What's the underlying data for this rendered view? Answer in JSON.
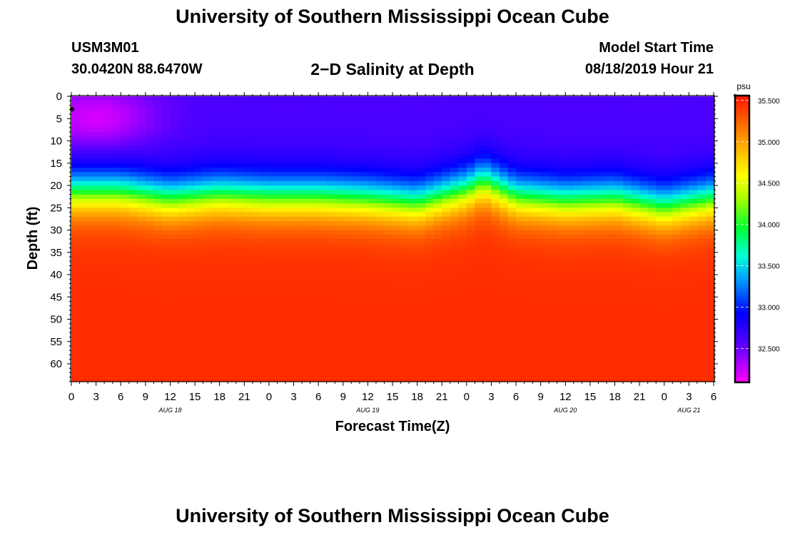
{
  "header": {
    "title": "University of Southern Mississippi Ocean Cube",
    "station_id": "USM3M01",
    "station_coords": "30.0420N 88.6470W",
    "subtitle": "2−D Salinity at Depth",
    "start_label": "Model Start Time",
    "start_value": "08/18/2019 Hour 21"
  },
  "footer": {
    "title": "University of Southern Mississippi Ocean Cube"
  },
  "chart_data": {
    "type": "heatmap",
    "title": "2−D Salinity at Depth",
    "xlabel": "Forecast Time(Z)",
    "ylabel": "Depth (ft)",
    "xlim": [
      0,
      78
    ],
    "ylim": [
      64,
      0
    ],
    "x_ticks": [
      {
        "x": 0,
        "label": "0"
      },
      {
        "x": 3,
        "label": "3"
      },
      {
        "x": 6,
        "label": "6"
      },
      {
        "x": 9,
        "label": "9"
      },
      {
        "x": 12,
        "label": "12"
      },
      {
        "x": 15,
        "label": "15"
      },
      {
        "x": 18,
        "label": "18"
      },
      {
        "x": 21,
        "label": "21"
      },
      {
        "x": 24,
        "label": "0"
      },
      {
        "x": 27,
        "label": "3"
      },
      {
        "x": 30,
        "label": "6"
      },
      {
        "x": 33,
        "label": "9"
      },
      {
        "x": 36,
        "label": "12"
      },
      {
        "x": 39,
        "label": "15"
      },
      {
        "x": 42,
        "label": "18"
      },
      {
        "x": 45,
        "label": "21"
      },
      {
        "x": 48,
        "label": "0"
      },
      {
        "x": 51,
        "label": "3"
      },
      {
        "x": 54,
        "label": "6"
      },
      {
        "x": 57,
        "label": "9"
      },
      {
        "x": 60,
        "label": "12"
      },
      {
        "x": 63,
        "label": "15"
      },
      {
        "x": 66,
        "label": "18"
      },
      {
        "x": 69,
        "label": "21"
      },
      {
        "x": 72,
        "label": "0"
      },
      {
        "x": 75,
        "label": "3"
      },
      {
        "x": 78,
        "label": "6"
      }
    ],
    "date_labels": [
      {
        "x": 12,
        "label": "AUG 18"
      },
      {
        "x": 36,
        "label": "AUG 19"
      },
      {
        "x": 60,
        "label": "AUG 20"
      },
      {
        "x": 75,
        "label": "AUG 21"
      }
    ],
    "y_ticks": [
      0,
      5,
      10,
      15,
      20,
      25,
      30,
      35,
      40,
      45,
      50,
      55,
      60
    ],
    "colorbar": {
      "unit": "psu",
      "min": 32.1,
      "max": 35.55,
      "ticks": [
        {
          "value": 32.5,
          "label": "32.500"
        },
        {
          "value": 33.0,
          "label": "33.000"
        },
        {
          "value": 33.5,
          "label": "33.500"
        },
        {
          "value": 34.0,
          "label": "34.000"
        },
        {
          "value": 34.5,
          "label": "34.500"
        },
        {
          "value": 35.0,
          "label": "35.000"
        },
        {
          "value": 35.5,
          "label": "35.500"
        }
      ]
    },
    "halocline_depth_ft": [
      {
        "x": 0,
        "depth": 21.5
      },
      {
        "x": 6,
        "depth": 21.5
      },
      {
        "x": 12,
        "depth": 23.0
      },
      {
        "x": 18,
        "depth": 22.0
      },
      {
        "x": 24,
        "depth": 22.5
      },
      {
        "x": 30,
        "depth": 22.5
      },
      {
        "x": 36,
        "depth": 23.0
      },
      {
        "x": 42,
        "depth": 24.0
      },
      {
        "x": 48,
        "depth": 21.0
      },
      {
        "x": 50,
        "depth": 19.0
      },
      {
        "x": 54,
        "depth": 22.5
      },
      {
        "x": 60,
        "depth": 23.5
      },
      {
        "x": 66,
        "depth": 23.0
      },
      {
        "x": 72,
        "depth": 25.0
      },
      {
        "x": 78,
        "depth": 23.0
      }
    ],
    "surface_salinity_psu": 32.6,
    "bottom_salinity_psu": 35.45,
    "surface_minimum": {
      "x": 3,
      "depth": 5,
      "value": 32.2
    }
  }
}
